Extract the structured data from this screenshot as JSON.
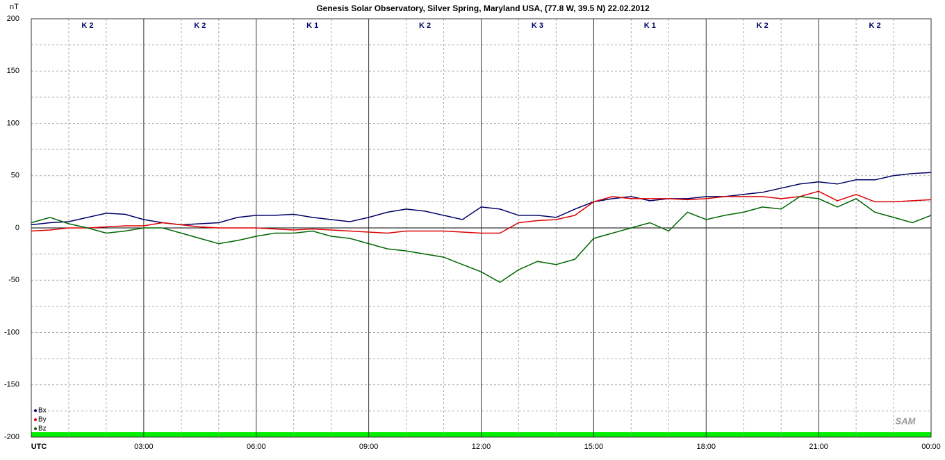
{
  "chart_data": {
    "type": "line",
    "title": "Genesis Solar Observatory, Silver Spring, Maryland USA, (77.8 W, 39.5 N)  22.02.2012",
    "y_label": "nT",
    "logo_text": "SAM",
    "k_labels": [
      "K 2",
      "K 2",
      "K 1",
      "K 2",
      "K 3",
      "K 1",
      "K 2",
      "K 2"
    ],
    "x": [
      0,
      0.5,
      1,
      1.5,
      2,
      2.5,
      3,
      3.5,
      4,
      4.5,
      5,
      5.5,
      6,
      6.5,
      7,
      7.5,
      8,
      8.5,
      9,
      9.5,
      10,
      10.5,
      11,
      11.5,
      12,
      12.5,
      13,
      13.5,
      14,
      14.5,
      15,
      15.5,
      16,
      16.5,
      17,
      17.5,
      18,
      18.5,
      19,
      19.5,
      20,
      20.5,
      21,
      21.5,
      22,
      22.5,
      23,
      23.5,
      24
    ],
    "series": [
      {
        "name": "Bx",
        "color": "#000066",
        "values": [
          3,
          5,
          6,
          10,
          14,
          13,
          8,
          5,
          3,
          4,
          5,
          10,
          12,
          12,
          13,
          10,
          8,
          6,
          10,
          15,
          18,
          16,
          12,
          8,
          20,
          18,
          12,
          12,
          10,
          18,
          25,
          28,
          30,
          26,
          28,
          28,
          30,
          30,
          32,
          34,
          38,
          42,
          44,
          42,
          46,
          46,
          50,
          52,
          53
        ]
      },
      {
        "name": "By",
        "color": "#dd0000",
        "values": [
          -3,
          -2,
          0,
          0,
          1,
          2,
          2,
          5,
          3,
          1,
          0,
          0,
          0,
          -1,
          -2,
          -1,
          -2,
          -3,
          -4,
          -5,
          -3,
          -3,
          -3,
          -4,
          -5,
          -5,
          5,
          7,
          8,
          12,
          25,
          30,
          28,
          28,
          28,
          27,
          28,
          30,
          30,
          30,
          28,
          30,
          35,
          26,
          32,
          25,
          25,
          26,
          27
        ]
      },
      {
        "name": "Bz",
        "color": "#006600",
        "values": [
          5,
          10,
          4,
          0,
          -5,
          -3,
          0,
          0,
          -5,
          -10,
          -15,
          -12,
          -8,
          -5,
          -5,
          -3,
          -8,
          -10,
          -15,
          -20,
          -22,
          -25,
          -28,
          -35,
          -42,
          -52,
          -40,
          -32,
          -35,
          -30,
          -10,
          -5,
          0,
          5,
          -3,
          15,
          8,
          12,
          15,
          20,
          18,
          30,
          28,
          20,
          28,
          15,
          10,
          5,
          12
        ]
      }
    ],
    "xlim": [
      0,
      24
    ],
    "xticks": [
      {
        "value": 0,
        "label": "UTC"
      },
      {
        "value": 3,
        "label": "03:00"
      },
      {
        "value": 6,
        "label": "06:00"
      },
      {
        "value": 9,
        "label": "09:00"
      },
      {
        "value": 12,
        "label": "12:00"
      },
      {
        "value": 15,
        "label": "15:00"
      },
      {
        "value": 18,
        "label": "18:00"
      },
      {
        "value": 21,
        "label": "21:00"
      },
      {
        "value": 24,
        "label": "00:00"
      }
    ],
    "ylim": [
      -200,
      200
    ],
    "yticks": [
      -200,
      -150,
      -100,
      -50,
      0,
      50,
      100,
      150,
      200
    ],
    "grid": true,
    "legend": "lower left"
  }
}
